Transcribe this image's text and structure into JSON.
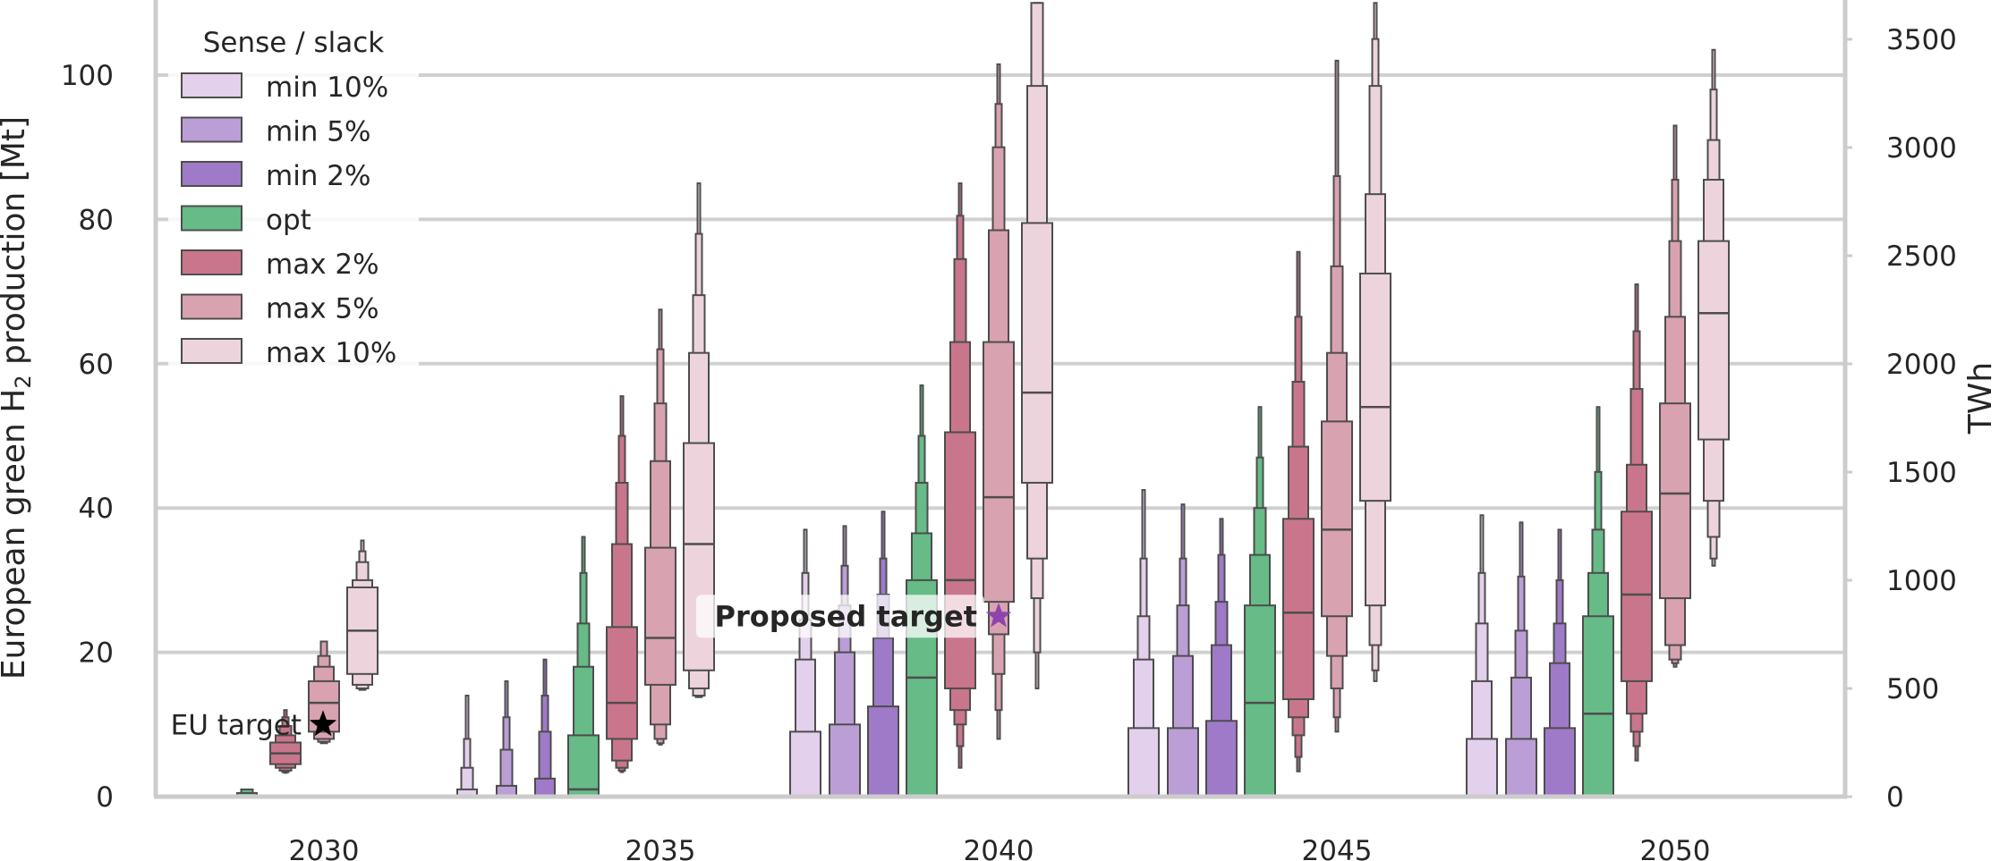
{
  "chart_data": {
    "type": "boxen",
    "ylabel_left_prefix": "European green H",
    "ylabel_left_sub": "2",
    "ylabel_left_suffix": " production [Mt]",
    "ylabel_right": "TWh",
    "ylim": [
      0,
      110
    ],
    "right_ylim_twh": [
      0,
      3666
    ],
    "yticks_left": [
      "0",
      "20",
      "40",
      "60",
      "80",
      "100"
    ],
    "yticks_right": [
      "0",
      "500",
      "1000",
      "1500",
      "2000",
      "2500",
      "3000",
      "3500"
    ],
    "categories": [
      "2030",
      "2035",
      "2040",
      "2045",
      "2050"
    ],
    "legend_title": "Sense / slack",
    "series": [
      {
        "name": "min 10%",
        "color": "#e3d0ec"
      },
      {
        "name": "min 5%",
        "color": "#bb9ed6"
      },
      {
        "name": "min 2%",
        "color": "#9f7ac8"
      },
      {
        "name": "opt",
        "color": "#66bb87"
      },
      {
        "name": "max 2%",
        "color": "#c9768c"
      },
      {
        "name": "max 5%",
        "color": "#d9a2b0"
      },
      {
        "name": "max 10%",
        "color": "#edd4dc"
      }
    ],
    "distributions": [
      [
        null,
        null,
        null,
        {
          "median": 0,
          "levels": [
            [
              0,
              0
            ],
            [
              0,
              0.5
            ],
            [
              0,
              1.0
            ]
          ]
        },
        {
          "median": 6,
          "levels": [
            [
              4.5,
              7.5
            ],
            [
              4,
              8.5
            ],
            [
              3.6,
              9.8
            ],
            [
              3.4,
              11
            ],
            [
              3.3,
              12
            ]
          ]
        },
        {
          "median": 13,
          "levels": [
            [
              9,
              16
            ],
            [
              8,
              18
            ],
            [
              7.6,
              19.5
            ],
            [
              7.4,
              21.5
            ]
          ]
        },
        {
          "median": 23,
          "levels": [
            [
              17,
              29
            ],
            [
              15.5,
              30
            ],
            [
              15,
              32.5
            ],
            [
              14.8,
              34
            ],
            [
              14.8,
              35.5
            ]
          ]
        }
      ],
      [
        {
          "median": 0,
          "levels": [
            [
              0,
              0
            ],
            [
              0,
              1
            ],
            [
              0,
              4
            ],
            [
              0,
              8
            ],
            [
              0,
              14
            ]
          ]
        },
        {
          "median": 0,
          "levels": [
            [
              0,
              0
            ],
            [
              0,
              1.5
            ],
            [
              0,
              6.5
            ],
            [
              0,
              11
            ],
            [
              0,
              16
            ]
          ]
        },
        {
          "median": 0,
          "levels": [
            [
              0,
              0
            ],
            [
              0,
              2.5
            ],
            [
              0,
              9
            ],
            [
              0,
              14
            ],
            [
              0,
              19
            ]
          ]
        },
        {
          "median": 1,
          "levels": [
            [
              0,
              8.5
            ],
            [
              0,
              18
            ],
            [
              0,
              24
            ],
            [
              0,
              31
            ],
            [
              0,
              36
            ]
          ]
        },
        {
          "median": 13,
          "levels": [
            [
              8,
              23.5
            ],
            [
              5,
              35
            ],
            [
              4,
              43.5
            ],
            [
              3.6,
              50
            ],
            [
              3.4,
              55.5
            ]
          ]
        },
        {
          "median": 22,
          "levels": [
            [
              15.5,
              34.5
            ],
            [
              10,
              46.5
            ],
            [
              8,
              54.5
            ],
            [
              7.4,
              62
            ],
            [
              7.2,
              67.5
            ]
          ]
        },
        {
          "median": 35,
          "levels": [
            [
              17.5,
              49
            ],
            [
              15,
              61.5
            ],
            [
              14,
              69.5
            ],
            [
              13.8,
              78
            ],
            [
              13.8,
              85
            ]
          ]
        }
      ],
      [
        {
          "median": 0,
          "levels": [
            [
              0,
              9
            ],
            [
              0,
              19
            ],
            [
              0,
              24.5
            ],
            [
              0,
              31
            ],
            [
              0,
              37
            ]
          ]
        },
        {
          "median": 0,
          "levels": [
            [
              0,
              10
            ],
            [
              0,
              20
            ],
            [
              0,
              26.5
            ],
            [
              0,
              32
            ],
            [
              0,
              37.5
            ]
          ]
        },
        {
          "median": 0,
          "levels": [
            [
              0,
              12.5
            ],
            [
              0,
              22
            ],
            [
              0,
              28
            ],
            [
              0,
              33
            ],
            [
              0,
              39.5
            ]
          ]
        },
        {
          "median": 16.5,
          "levels": [
            [
              0,
              30
            ],
            [
              0,
              36.5
            ],
            [
              0,
              43.5
            ],
            [
              0,
              50
            ],
            [
              0,
              57
            ]
          ]
        },
        {
          "median": 30,
          "levels": [
            [
              15,
              50.5
            ],
            [
              12,
              63
            ],
            [
              10,
              74.5
            ],
            [
              7,
              80.5
            ],
            [
              4,
              85
            ]
          ]
        },
        {
          "median": 41.5,
          "levels": [
            [
              27,
              63
            ],
            [
              22.5,
              78.5
            ],
            [
              17,
              90
            ],
            [
              12,
              96
            ],
            [
              8,
              101.5
            ]
          ]
        },
        {
          "median": 56,
          "levels": [
            [
              43.5,
              79.5
            ],
            [
              33,
              98.5
            ],
            [
              27.5,
              110
            ],
            [
              20,
              110
            ],
            [
              15,
              110
            ]
          ]
        }
      ],
      [
        {
          "median": 0,
          "levels": [
            [
              0,
              9.5
            ],
            [
              0,
              19
            ],
            [
              0,
              25
            ],
            [
              0,
              33
            ],
            [
              0,
              42.5
            ]
          ]
        },
        {
          "median": 0,
          "levels": [
            [
              0,
              9.5
            ],
            [
              0,
              19.5
            ],
            [
              0,
              26.5
            ],
            [
              0,
              33
            ],
            [
              0,
              40.5
            ]
          ]
        },
        {
          "median": 0,
          "levels": [
            [
              0,
              10.5
            ],
            [
              0,
              21
            ],
            [
              0,
              27
            ],
            [
              0,
              33.5
            ],
            [
              0,
              38.5
            ]
          ]
        },
        {
          "median": 13,
          "levels": [
            [
              0,
              26.5
            ],
            [
              0,
              33.5
            ],
            [
              0,
              40
            ],
            [
              0,
              47
            ],
            [
              0,
              54
            ]
          ]
        },
        {
          "median": 25.5,
          "levels": [
            [
              13.5,
              38.5
            ],
            [
              11,
              48.5
            ],
            [
              8.5,
              57.5
            ],
            [
              5.5,
              66.5
            ],
            [
              3.5,
              75.5
            ]
          ]
        },
        {
          "median": 37,
          "levels": [
            [
              25,
              52
            ],
            [
              19.5,
              61.5
            ],
            [
              15,
              73.5
            ],
            [
              11,
              86
            ],
            [
              9,
              102
            ]
          ]
        },
        {
          "median": 54,
          "levels": [
            [
              41,
              72.5
            ],
            [
              26.5,
              83.5
            ],
            [
              21,
              98.5
            ],
            [
              17.5,
              105
            ],
            [
              16,
              110
            ]
          ]
        }
      ],
      [
        {
          "median": 0,
          "levels": [
            [
              0,
              8
            ],
            [
              0,
              16
            ],
            [
              0,
              24
            ],
            [
              0,
              31
            ],
            [
              0,
              39
            ]
          ]
        },
        {
          "median": 0,
          "levels": [
            [
              0,
              8
            ],
            [
              0,
              16.5
            ],
            [
              0,
              23
            ],
            [
              0,
              30.5
            ],
            [
              0,
              38
            ]
          ]
        },
        {
          "median": 0,
          "levels": [
            [
              0,
              9.5
            ],
            [
              0,
              18.5
            ],
            [
              0,
              24
            ],
            [
              0,
              30
            ],
            [
              0,
              37
            ]
          ]
        },
        {
          "median": 11.5,
          "levels": [
            [
              0,
              25
            ],
            [
              0,
              31
            ],
            [
              0,
              37
            ],
            [
              0,
              45
            ],
            [
              0,
              54
            ]
          ]
        },
        {
          "median": 28,
          "levels": [
            [
              16,
              39.5
            ],
            [
              11.5,
              46
            ],
            [
              9,
              56.5
            ],
            [
              7,
              64.5
            ],
            [
              5,
              71
            ]
          ]
        },
        {
          "median": 42,
          "levels": [
            [
              27.5,
              54.5
            ],
            [
              21,
              66.5
            ],
            [
              19,
              77
            ],
            [
              18.5,
              85.5
            ],
            [
              18,
              93
            ]
          ]
        },
        {
          "median": 67,
          "levels": [
            [
              49.5,
              77
            ],
            [
              41,
              85.5
            ],
            [
              36,
              91
            ],
            [
              33,
              98
            ],
            [
              32,
              103.5
            ]
          ]
        }
      ]
    ],
    "annotations": [
      {
        "text": "EU target",
        "category": "2030",
        "value": 10,
        "marker_color": "#000000"
      },
      {
        "text": "Proposed target",
        "category": "2040",
        "value": 25,
        "marker_color": "#8e44ad"
      }
    ]
  }
}
